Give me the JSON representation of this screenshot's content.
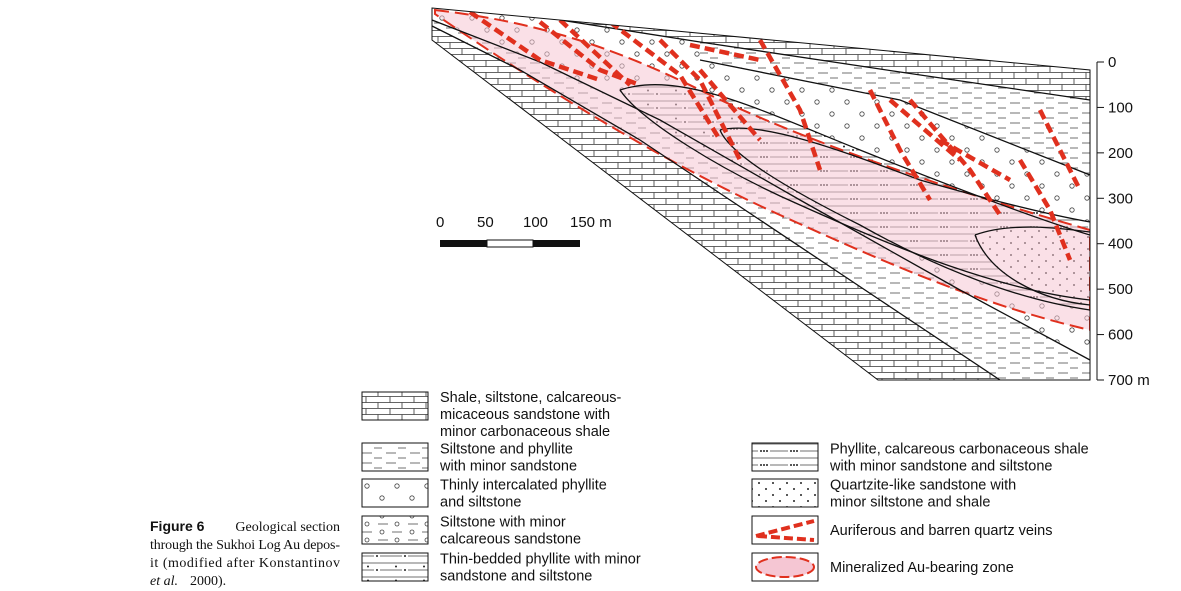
{
  "figure": {
    "depth_scale": {
      "labels": [
        "0",
        "100",
        "200",
        "300",
        "400",
        "500",
        "600",
        "700 m"
      ]
    },
    "scale_bar": {
      "labels": [
        "0",
        "50",
        "100",
        "150 m"
      ]
    },
    "legend": {
      "left": [
        {
          "lines": [
            "Shale, siltstone, calcareous-",
            "micaceous sandstone with",
            "minor carbonaceous shale"
          ]
        },
        {
          "lines": [
            "Siltstone and phyllite",
            "with minor sandstone"
          ]
        },
        {
          "lines": [
            "Thinly intercalated phyllite",
            "and siltstone"
          ]
        },
        {
          "lines": [
            "Siltstone with minor",
            "calcareous sandstone"
          ]
        },
        {
          "lines": [
            "Thin-bedded phyllite with minor",
            "sandstone and siltstone"
          ]
        }
      ],
      "right": [
        {
          "lines": [
            "Phyllite, calcareous carbonaceous shale",
            "with minor sandstone and siltstone"
          ]
        },
        {
          "lines": [
            "Quartzite-like sandstone with",
            "minor siltstone and shale"
          ]
        },
        {
          "lines": [
            "Auriferous and barren quartz veins"
          ]
        },
        {
          "lines": [
            "Mineralized Au-bearing zone"
          ]
        }
      ]
    }
  },
  "caption": {
    "label": "Figure 6",
    "lines": [
      "Geological section",
      "through the Sukhoi Log Au depos-",
      "it (modified after Konstantinov"
    ],
    "italic": "et al.",
    "end": "2000)."
  }
}
